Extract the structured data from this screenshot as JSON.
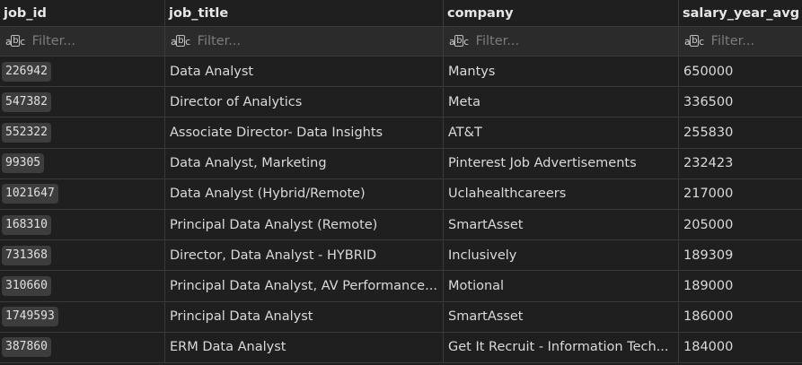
{
  "columns": [
    {
      "key": "job_id",
      "label": "job_id"
    },
    {
      "key": "job_title",
      "label": "job_title"
    },
    {
      "key": "company",
      "label": "company"
    },
    {
      "key": "salary_year_avg",
      "label": "salary_year_avg"
    }
  ],
  "filter": {
    "placeholder": "Filter...",
    "icon": "abc-text-type-icon"
  },
  "rows": [
    {
      "job_id": "226942",
      "job_title": "Data Analyst",
      "company": "Mantys",
      "salary_year_avg": "650000"
    },
    {
      "job_id": "547382",
      "job_title": "Director of Analytics",
      "company": "Meta",
      "salary_year_avg": "336500"
    },
    {
      "job_id": "552322",
      "job_title": "Associate Director- Data Insights",
      "company": "AT&T",
      "salary_year_avg": "255830"
    },
    {
      "job_id": "99305",
      "job_title": "Data Analyst, Marketing",
      "company": "Pinterest Job Advertisements",
      "salary_year_avg": "232423"
    },
    {
      "job_id": "1021647",
      "job_title": "Data Analyst (Hybrid/Remote)",
      "company": "Uclahealthcareers",
      "salary_year_avg": "217000"
    },
    {
      "job_id": "168310",
      "job_title": "Principal Data Analyst (Remote)",
      "company": "SmartAsset",
      "salary_year_avg": "205000"
    },
    {
      "job_id": "731368",
      "job_title": "Director, Data Analyst - HYBRID",
      "company": "Inclusively",
      "salary_year_avg": "189309"
    },
    {
      "job_id": "310660",
      "job_title": "Principal Data Analyst, AV Performance...",
      "company": "Motional",
      "salary_year_avg": "189000"
    },
    {
      "job_id": "1749593",
      "job_title": "Principal Data Analyst",
      "company": "SmartAsset",
      "salary_year_avg": "186000"
    },
    {
      "job_id": "387860",
      "job_title": "ERM Data Analyst",
      "company": "Get It Recruit - Information Tech...",
      "salary_year_avg": "184000"
    }
  ],
  "colors": {
    "background": "#1f1f1f",
    "filter_background": "#2b2b2b",
    "id_chip": "#3d3d3d",
    "border": "#3a3a3a"
  }
}
